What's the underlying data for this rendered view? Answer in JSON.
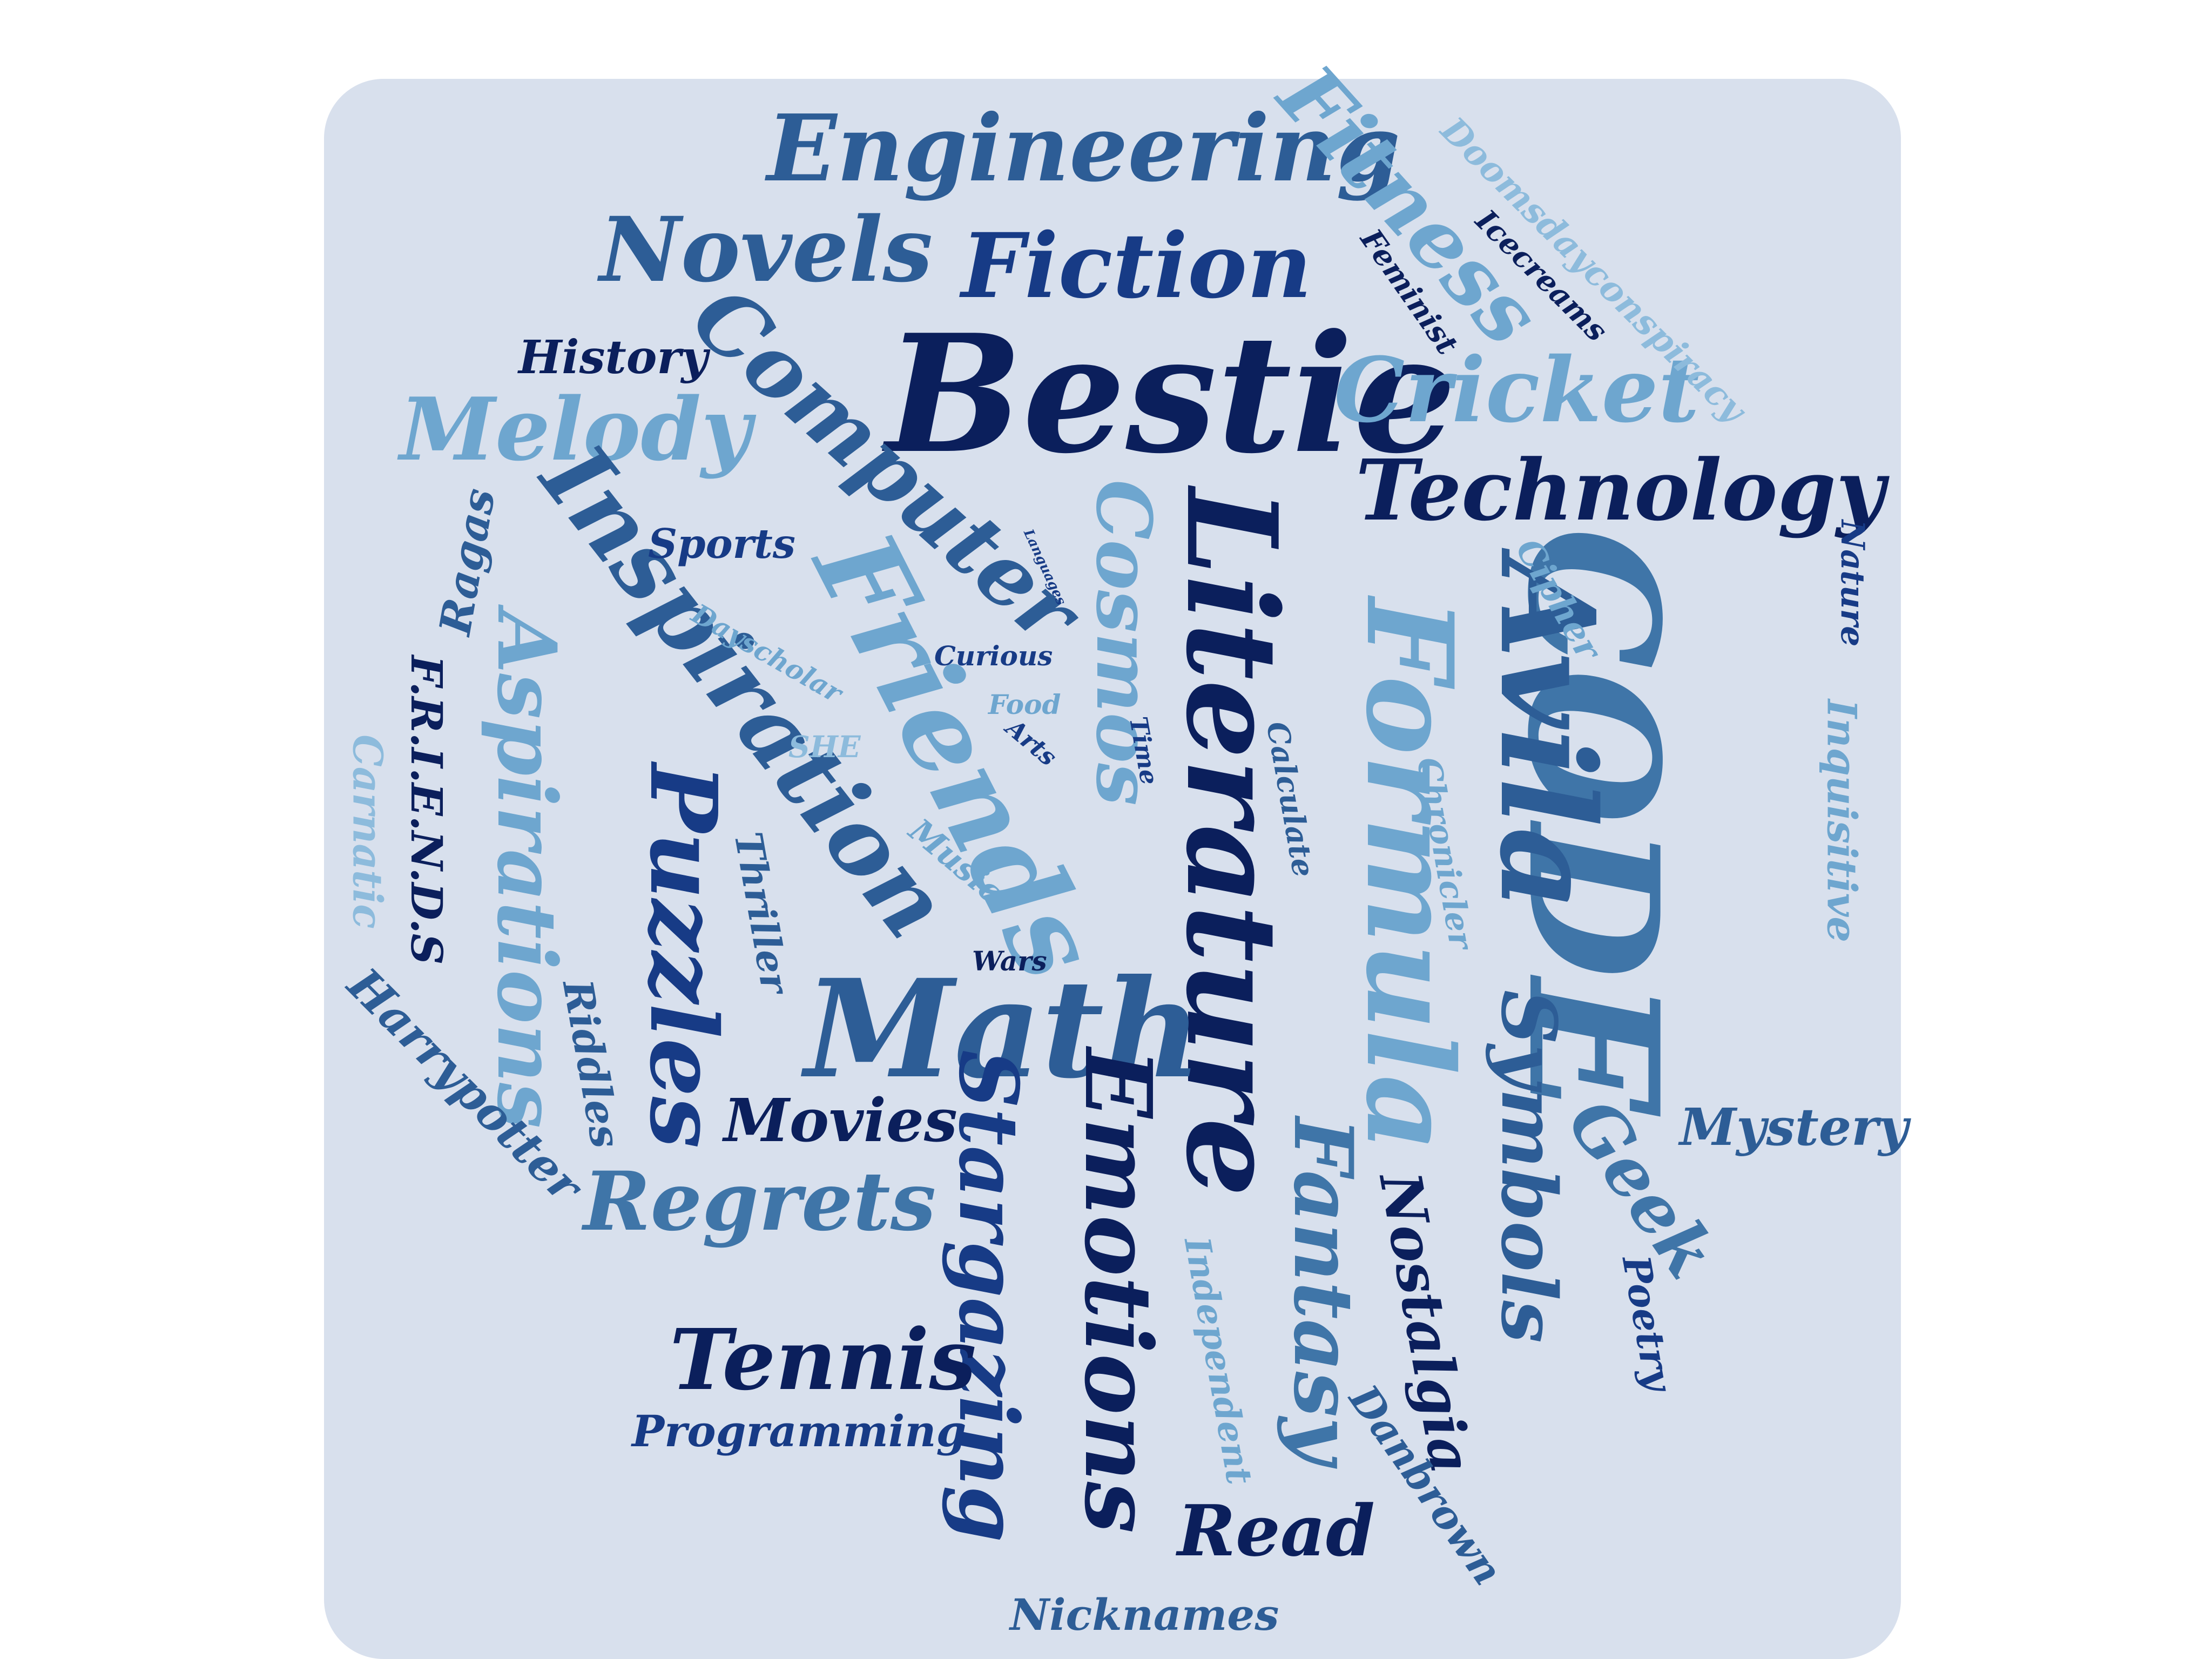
{
  "words": {
    "bestie": "Bestie",
    "code": "CODE",
    "literature": "Literature",
    "math": "Math",
    "friends": "Friends",
    "formula": "Formula",
    "avila": "Avila",
    "technology": "Technology",
    "engineering": "Engineering",
    "fiction": "Fiction",
    "novels": "Novels",
    "computer": "Computer",
    "melody": "Melody",
    "cricket": "Cricket",
    "fitness": "Fitness",
    "inspiration": "Inspiration",
    "aspirations": "Aspirations",
    "puzzles": "Puzzles",
    "cosmos": "Cosmos",
    "emotions": "Emotions",
    "stargazing": "Stargazing",
    "fantasy": "Fantasy",
    "symbols": "Symbols",
    "regrets": "Regrets",
    "tennis": "Tennis",
    "movies": "Movies",
    "read": "Read",
    "geek": "Geek",
    "mystery": "Mystery",
    "nostalgia": "Nostalgia",
    "history": "History",
    "sports": "Sports",
    "ragas": "Ragas",
    "friends_acronym": "F.R.I.E.N.D.S",
    "carnatic": "Carnatic",
    "harrypotter": "Harrypotter",
    "riddles": "Riddles",
    "thriller": "Thriller",
    "programming": "Programming",
    "nicknames": "Nicknames",
    "danbrown": "Danbrown",
    "independent": "Independent",
    "poetry": "Poetry",
    "chronicler": "Chronicler",
    "calculate": "Calculate",
    "time": "Time",
    "arts": "Arts",
    "food": "Food",
    "she": "SHE",
    "music": "Music",
    "wars": "Wars",
    "curious": "Curious",
    "dayscholar": "Dayscholar",
    "languages": "Languages",
    "cipher": "Cipher",
    "nature": "Nature",
    "inquisitive": "Inquisitive",
    "doomsdayconspiracy": "Doomsdayconspiracy",
    "icecreams": "Icecreams",
    "feminist": "Feminist"
  },
  "colors": {
    "background": "#ffffff",
    "card": "#d8e0ed",
    "palette": [
      "#0b1f5c",
      "#173b86",
      "#2d5d96",
      "#3f75a8",
      "#6ea6cf",
      "#8dbbdc"
    ]
  }
}
